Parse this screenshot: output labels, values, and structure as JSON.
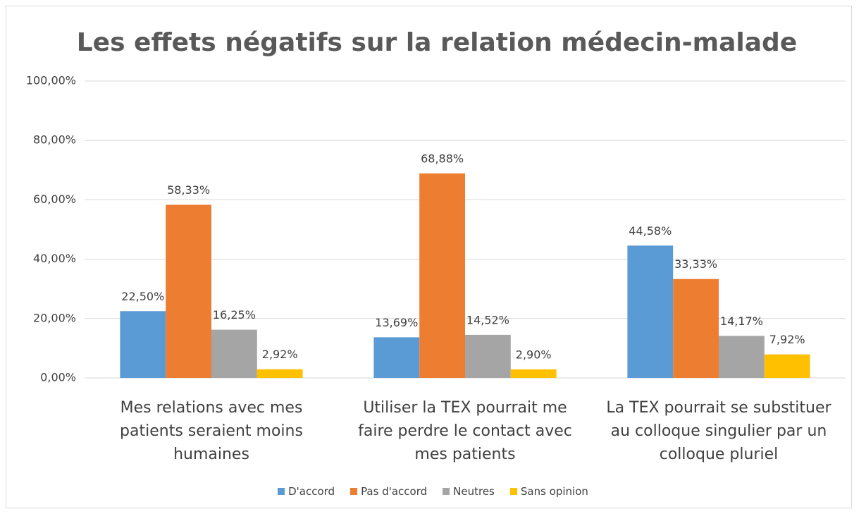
{
  "chart_data": {
    "type": "bar",
    "title": "Les effets négatifs sur la relation médecin-malade",
    "categories": [
      "Mes relations avec mes patients seraient moins humaines",
      "Utiliser la TEX pourrait me faire perdre le contact avec mes patients",
      "La TEX pourrait se substituer au colloque singulier par un colloque pluriel"
    ],
    "series": [
      {
        "name": "D'accord",
        "color": "#5b9bd5",
        "values": [
          22.5,
          13.69,
          44.58
        ],
        "value_labels": [
          "22,50%",
          "13,69%",
          "44,58%"
        ]
      },
      {
        "name": "Pas d'accord",
        "color": "#ed7d31",
        "values": [
          58.33,
          68.88,
          33.33
        ],
        "value_labels": [
          "58,33%",
          "68,88%",
          "33,33%"
        ]
      },
      {
        "name": "Neutres",
        "color": "#a5a5a5",
        "values": [
          16.25,
          14.52,
          14.17
        ],
        "value_labels": [
          "16,25%",
          "14,52%",
          "14,17%"
        ]
      },
      {
        "name": "Sans opinion",
        "color": "#ffc000",
        "values": [
          2.92,
          2.9,
          7.92
        ],
        "value_labels": [
          "2,92%",
          "2,90%",
          "7,92%"
        ]
      }
    ],
    "ylim": [
      0,
      100
    ],
    "yticks": [
      {
        "value": 0,
        "label": "0,00%"
      },
      {
        "value": 20,
        "label": "20,00%"
      },
      {
        "value": 40,
        "label": "40,00%"
      },
      {
        "value": 60,
        "label": "60,00%"
      },
      {
        "value": 80,
        "label": "80,00%"
      },
      {
        "value": 100,
        "label": "100,00%"
      }
    ],
    "grid": true,
    "legend": "bottom"
  }
}
